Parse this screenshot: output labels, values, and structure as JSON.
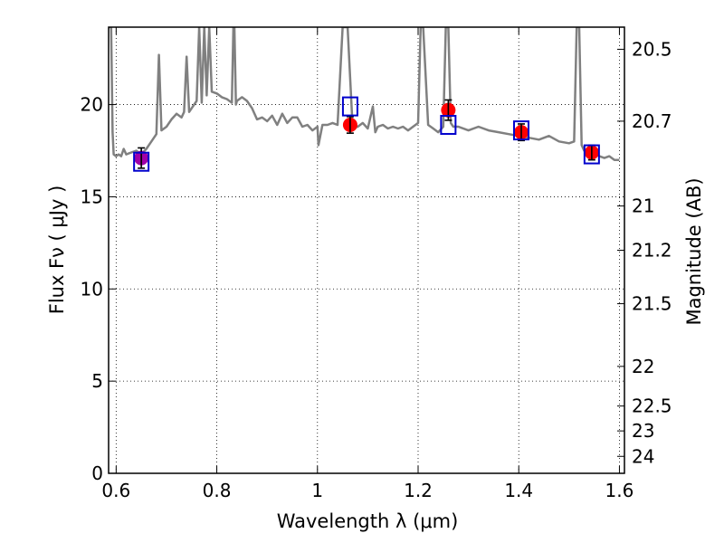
{
  "chart_data": {
    "type": "scatter",
    "xlabel": "Wavelength  λ (μm)",
    "ylabel": "Flux  Fν  ( μJy )",
    "y2label": "Magnitude (AB)",
    "xlim": [
      0.585,
      1.61
    ],
    "ylim": [
      0,
      24.2
    ],
    "grid": true,
    "x_ticks": [
      0.6,
      0.8,
      1.0,
      1.2,
      1.4,
      1.6
    ],
    "x_tick_labels": [
      "0.6",
      "0.8",
      "1",
      "1.2",
      "1.4",
      "1.6"
    ],
    "y_ticks": [
      0,
      5,
      10,
      15,
      20
    ],
    "y_tick_labels": [
      "0",
      "5",
      "10",
      "15",
      "20"
    ],
    "y2_ticks": [
      {
        "label": "20.5",
        "flux": 23.0
      },
      {
        "label": "20.7",
        "flux": 19.1
      },
      {
        "label": "21",
        "flux": 14.5
      },
      {
        "label": "21.2",
        "flux": 12.1
      },
      {
        "label": "21.5",
        "flux": 9.2
      },
      {
        "label": "22",
        "flux": 5.8
      },
      {
        "label": "22.5",
        "flux": 3.65
      },
      {
        "label": "23",
        "flux": 2.3
      },
      {
        "label": "24",
        "flux": 0.92
      }
    ],
    "series": [
      {
        "style": "spectrum",
        "color": "#808080",
        "x": [
          0.585,
          0.59,
          0.593,
          0.595,
          0.6,
          0.605,
          0.61,
          0.615,
          0.62,
          0.63,
          0.64,
          0.65,
          0.66,
          0.67,
          0.68,
          0.685,
          0.69,
          0.7,
          0.71,
          0.72,
          0.73,
          0.735,
          0.74,
          0.745,
          0.75,
          0.76,
          0.765,
          0.77,
          0.775,
          0.78,
          0.785,
          0.79,
          0.8,
          0.81,
          0.82,
          0.83,
          0.833,
          0.835,
          0.838,
          0.84,
          0.85,
          0.86,
          0.87,
          0.88,
          0.89,
          0.9,
          0.91,
          0.92,
          0.93,
          0.94,
          0.95,
          0.96,
          0.97,
          0.98,
          0.99,
          1.0,
          1.002,
          1.01,
          1.02,
          1.03,
          1.04,
          1.05,
          1.06,
          1.07,
          1.08,
          1.09,
          1.1,
          1.11,
          1.115,
          1.12,
          1.13,
          1.14,
          1.15,
          1.16,
          1.17,
          1.18,
          1.19,
          1.2,
          1.205,
          1.21,
          1.22,
          1.23,
          1.24,
          1.25,
          1.255,
          1.26,
          1.265,
          1.27,
          1.28,
          1.3,
          1.32,
          1.34,
          1.36,
          1.38,
          1.4,
          1.42,
          1.44,
          1.46,
          1.48,
          1.5,
          1.51,
          1.515,
          1.52,
          1.525,
          1.53,
          1.54,
          1.55,
          1.56,
          1.57,
          1.58,
          1.59,
          1.6
        ],
        "y": [
          24.2,
          24.2,
          18.5,
          17.3,
          17.2,
          17.3,
          17.2,
          17.6,
          17.3,
          17.4,
          17.5,
          17.3,
          17.6,
          18.0,
          18.4,
          22.7,
          18.6,
          18.8,
          19.2,
          19.5,
          19.3,
          19.6,
          22.6,
          19.6,
          19.8,
          20.2,
          24.2,
          20.1,
          24.2,
          20.5,
          24.2,
          20.7,
          20.6,
          20.4,
          20.3,
          20.1,
          24.2,
          24.2,
          20.0,
          20.2,
          20.4,
          20.2,
          19.8,
          19.2,
          19.3,
          19.1,
          19.4,
          18.9,
          19.5,
          19.0,
          19.3,
          19.3,
          18.8,
          18.9,
          18.6,
          18.8,
          17.8,
          18.9,
          18.9,
          19.0,
          18.9,
          24.2,
          24.2,
          18.7,
          18.8,
          19.0,
          18.7,
          19.9,
          18.5,
          18.8,
          18.9,
          18.7,
          18.8,
          18.7,
          18.8,
          18.6,
          18.8,
          19.0,
          24.2,
          24.2,
          18.9,
          18.7,
          18.5,
          18.8,
          24.2,
          24.2,
          19.0,
          18.8,
          18.8,
          18.6,
          18.8,
          18.6,
          18.5,
          18.4,
          18.3,
          18.2,
          18.1,
          18.3,
          18.0,
          17.9,
          18.0,
          24.2,
          24.2,
          17.8,
          17.5,
          17.3,
          17.4,
          17.2,
          17.1,
          17.2,
          17.0,
          17.0
        ]
      },
      {
        "style": "points",
        "color": "#ff0000",
        "x": [
          0.65,
          1.065,
          1.26,
          1.405,
          1.545
        ],
        "y": [
          17.1,
          18.9,
          19.7,
          18.5,
          17.4
        ],
        "yerr": [
          0.55,
          0.45,
          0.55,
          0.45,
          0.4
        ]
      },
      {
        "style": "squares",
        "color": "#0000cc",
        "x": [
          0.65,
          1.065,
          1.26,
          1.405,
          1.545
        ],
        "y": [
          16.9,
          19.9,
          18.9,
          18.6,
          17.3
        ]
      }
    ]
  }
}
